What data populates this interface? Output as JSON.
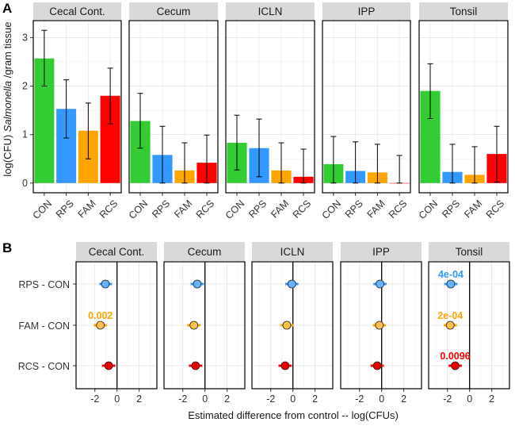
{
  "panel_letters": {
    "a": "A",
    "b": "B"
  },
  "chart_data": [
    {
      "type": "bar",
      "panel": "A",
      "facets": [
        "Cecal Cont.",
        "Cecum",
        "ICLN",
        "IPP",
        "Tonsil"
      ],
      "categories": [
        "CON",
        "RPS",
        "FAM",
        "RCS"
      ],
      "colors": {
        "CON": "#33cc33",
        "RPS": "#3399ff",
        "FAM": "#ffa500",
        "RCS": "#ff0000"
      },
      "series": [
        {
          "name": "Cecal Cont.",
          "values": [
            2.57,
            1.53,
            1.08,
            1.8
          ],
          "err_low": [
            2.0,
            0.93,
            0.5,
            1.22
          ],
          "err_high": [
            3.15,
            2.13,
            1.65,
            2.37
          ]
        },
        {
          "name": "Cecum",
          "values": [
            1.28,
            0.58,
            0.26,
            0.42
          ],
          "err_low": [
            0.72,
            0.0,
            0.0,
            0.0
          ],
          "err_high": [
            1.85,
            1.17,
            0.83,
            0.99
          ]
        },
        {
          "name": "ICLN",
          "values": [
            0.83,
            0.72,
            0.26,
            0.13
          ],
          "err_low": [
            0.27,
            0.13,
            0.0,
            0.0
          ],
          "err_high": [
            1.4,
            1.32,
            0.83,
            0.7
          ]
        },
        {
          "name": "IPP",
          "values": [
            0.39,
            0.25,
            0.22,
            0.0
          ],
          "err_low": [
            0.0,
            0.0,
            0.0,
            0.0
          ],
          "err_high": [
            0.96,
            0.85,
            0.8,
            0.57
          ]
        },
        {
          "name": "Tonsil",
          "values": [
            1.9,
            0.23,
            0.17,
            0.6
          ],
          "err_low": [
            1.33,
            0.0,
            0.0,
            0.02
          ],
          "err_high": [
            2.46,
            0.8,
            0.75,
            1.17
          ]
        }
      ],
      "ylabel_prefix": "log(CFU)",
      "ylabel_italic": "Salmonella",
      "ylabel_suffix": "/gram tissue",
      "ylim": [
        -0.2,
        3.35
      ],
      "yticks": [
        0,
        1,
        2,
        3
      ],
      "ytick_labels": [
        "0",
        "1",
        "2",
        "3"
      ],
      "grid": true
    },
    {
      "type": "scatter",
      "panel": "B",
      "facets": [
        "Cecal Cont.",
        "Cecum",
        "ICLN",
        "IPP",
        "Tonsil"
      ],
      "categories": [
        "RPS - CON",
        "FAM - CON",
        "RCS - CON"
      ],
      "colors": {
        "RPS - CON": "#3399ff",
        "FAM - CON": "#ffa500",
        "RCS - CON": "#ff0000"
      },
      "dot_colors": {
        "RPS - CON": "#66b2ff",
        "FAM - CON": "#ffc04d",
        "RCS - CON": "#e60000"
      },
      "series": [
        {
          "name": "Cecal Cont.",
          "est": [
            -1.05,
            -1.5,
            -0.75
          ],
          "low": [
            -1.6,
            -2.1,
            -1.35
          ],
          "high": [
            -0.45,
            -0.9,
            -0.15
          ],
          "pvals": [
            "",
            "0.002",
            ""
          ]
        },
        {
          "name": "Cecum",
          "est": [
            -0.7,
            -1.0,
            -0.85
          ],
          "low": [
            -1.3,
            -1.6,
            -1.45
          ],
          "high": [
            -0.1,
            -0.4,
            -0.25
          ],
          "pvals": [
            "",
            "",
            ""
          ]
        },
        {
          "name": "ICLN",
          "est": [
            -0.1,
            -0.55,
            -0.7
          ],
          "low": [
            -0.7,
            -1.15,
            -1.3
          ],
          "high": [
            0.5,
            0.05,
            -0.1
          ],
          "pvals": [
            "",
            "",
            ""
          ]
        },
        {
          "name": "IPP",
          "est": [
            -0.15,
            -0.2,
            -0.4
          ],
          "low": [
            -0.75,
            -0.8,
            -1.0
          ],
          "high": [
            0.45,
            0.4,
            0.2
          ],
          "pvals": [
            "",
            "",
            ""
          ]
        },
        {
          "name": "Tonsil",
          "est": [
            -1.7,
            -1.75,
            -1.3
          ],
          "low": [
            -2.3,
            -2.35,
            -1.9
          ],
          "high": [
            -1.1,
            -1.15,
            -0.7
          ],
          "pvals": [
            "4e-04",
            "2e-04",
            "0.0096"
          ]
        }
      ],
      "xlabel": "Estimated difference from control -- log(CFUs)",
      "xlim": [
        -3.7,
        3.6
      ],
      "xticks": [
        -2,
        0,
        2
      ],
      "xtick_labels": [
        "-2",
        "0",
        "2"
      ],
      "reference_line": 0,
      "grid": true
    }
  ]
}
